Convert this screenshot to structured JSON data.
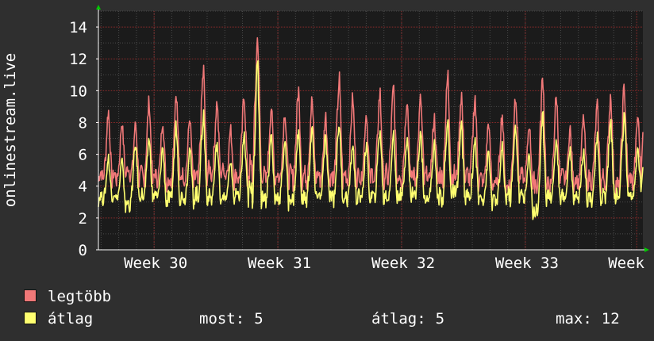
{
  "colors": {
    "background": "#2f2f2f",
    "plot_background": "#1b1b1b",
    "grid_major": "#8a2a2a",
    "grid_minor": "#4a4a4a",
    "series_max": "#f07878",
    "series_avg": "#ffff70",
    "arrow": "#00c800",
    "text": "#ffffff"
  },
  "legend": {
    "max_label": "legtöbb",
    "avg_label": "átlag"
  },
  "stats": {
    "now_label": "most:",
    "now_value": "5",
    "avg_label": "átlag:",
    "avg_value": "5",
    "max_label": "max:",
    "max_value": "12"
  },
  "chart_data": {
    "type": "line",
    "ylabel": "onlinestream.live",
    "ylim": [
      0,
      15
    ],
    "yticks": [
      0,
      2,
      4,
      6,
      8,
      10,
      12,
      14
    ],
    "xlim": [
      29.55,
      33.95
    ],
    "xticks": [
      {
        "label": "Week 30",
        "x": 30
      },
      {
        "label": "Week 31",
        "x": 31
      },
      {
        "label": "Week 32",
        "x": 32
      },
      {
        "label": "Week 33",
        "x": 33
      },
      {
        "label": "Week",
        "x": 33.9
      }
    ],
    "grid": true,
    "series": [
      {
        "name": "legtöbb",
        "peaks": [
          8.7,
          8.0,
          7.9,
          9.3,
          8.1,
          9.9,
          8.3,
          11.2,
          9.3,
          7.6,
          9.7,
          13.4,
          9.0,
          8.7,
          10.0,
          9.4,
          8.4,
          10.6,
          9.5,
          8.6,
          9.8,
          10.1,
          9.6,
          9.5,
          8.3,
          10.9,
          9.8,
          9.6,
          8.0,
          8.5,
          9.9,
          7.9,
          10.8,
          9.6,
          7.6,
          8.3,
          9.0,
          9.8,
          10.2,
          8.4
        ],
        "lows": [
          4.3,
          4.2,
          4.5,
          4.2,
          4.2,
          4.0,
          4.2,
          4.0,
          4.5,
          4.5,
          4.2,
          4.5,
          4.2,
          4.2,
          4.2,
          4.2,
          4.2,
          4.2,
          4.2,
          4.2,
          4.2,
          4.2,
          4.2,
          4.2,
          4.2,
          4.2,
          4.2,
          4.2,
          4.0,
          3.8,
          3.6,
          4.2,
          3.8,
          3.6,
          4.2,
          4.0,
          4.0,
          4.0,
          3.6,
          4.0
        ]
      },
      {
        "name": "átlag",
        "peaks": [
          5.8,
          5.6,
          6.6,
          7.0,
          6.4,
          7.8,
          6.4,
          8.5,
          6.7,
          5.6,
          7.2,
          11.4,
          7.2,
          6.9,
          7.4,
          7.6,
          7.0,
          8.0,
          6.6,
          6.6,
          7.6,
          7.2,
          7.2,
          7.5,
          6.6,
          8.0,
          7.8,
          6.9,
          6.1,
          6.4,
          7.8,
          6.0,
          8.2,
          6.9,
          6.4,
          6.4,
          7.0,
          8.1,
          8.4,
          6.4
        ],
        "lows": [
          3.0,
          3.1,
          2.6,
          3.1,
          3.1,
          2.8,
          3.0,
          3.1,
          3.0,
          3.0,
          3.0,
          3.2,
          3.0,
          3.0,
          2.9,
          2.9,
          3.1,
          3.1,
          3.0,
          3.0,
          3.0,
          3.0,
          3.1,
          3.2,
          3.0,
          3.0,
          3.2,
          3.0,
          3.0,
          2.8,
          3.1,
          3.1,
          2.2,
          3.1,
          3.0,
          3.1,
          3.0,
          3.1,
          3.0,
          3.1
        ]
      }
    ],
    "last_values": [
      7.4,
      5.2
    ]
  }
}
